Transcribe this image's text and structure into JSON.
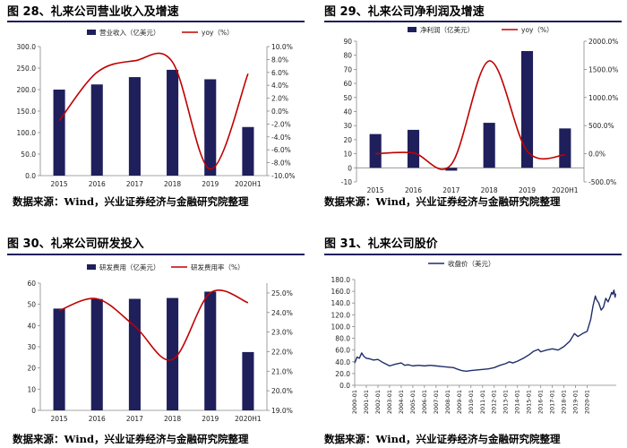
{
  "panels": [
    {
      "title": "图 28、礼来公司营业收入及增速",
      "source": "数据来源：Wind，兴业证券经济与金融研究院整理"
    },
    {
      "title": "图 29、礼来公司净利润及增速",
      "source": "数据来源：Wind，兴业证券经济与金融研究院整理"
    },
    {
      "title": "图 30、礼来公司研发投入",
      "source": "数据来源：Wind，兴业证券经济与金融研究院整理"
    },
    {
      "title": "图 31、礼来公司股价",
      "source": "数据来源：Wind，兴业证券经济与金融研究院整理"
    }
  ],
  "colors": {
    "bar": "#1f1f5c",
    "line": "#c00000",
    "price": "#1f2d6b",
    "rule": "#1f1f5c"
  },
  "chart_data": [
    {
      "type": "bar",
      "categories": [
        "2015",
        "2016",
        "2017",
        "2018",
        "2019",
        "2020H1"
      ],
      "series": [
        {
          "name": "营业收入（亿美元）",
          "type": "bar",
          "values": [
            200,
            212,
            229,
            246,
            224,
            113
          ]
        },
        {
          "name": "yoy（%）",
          "type": "line",
          "axis": "right",
          "values": [
            -1.5,
            6.0,
            7.8,
            7.6,
            -9.0,
            5.8
          ]
        }
      ],
      "ylim": [
        0,
        300
      ],
      "yticks": [
        "0.0",
        "50.0",
        "100.0",
        "150.0",
        "200.0",
        "250.0",
        "300.0"
      ],
      "y2lim": [
        -10,
        10
      ],
      "y2ticks": [
        "-10.0%",
        "-8.0%",
        "-6.0%",
        "-4.0%",
        "-2.0%",
        "0.0%",
        "2.0%",
        "4.0%",
        "6.0%",
        "8.0%",
        "10.0%"
      ],
      "legend": "top",
      "grid": false
    },
    {
      "type": "bar",
      "categories": [
        "2015",
        "2016",
        "2017",
        "2018",
        "2019",
        "2020H1"
      ],
      "series": [
        {
          "name": "净利润（亿美元）",
          "type": "bar",
          "values": [
            24,
            27,
            -2,
            32,
            83,
            28
          ]
        },
        {
          "name": "yoy（%）",
          "type": "line",
          "axis": "right",
          "values": [
            0,
            15,
            -190,
            1650,
            50,
            -20
          ]
        }
      ],
      "ylim": [
        -10,
        90
      ],
      "yticks": [
        "-10",
        "0",
        "10",
        "20",
        "30",
        "40",
        "50",
        "60",
        "70",
        "80",
        "90"
      ],
      "y2lim": [
        -500,
        2000
      ],
      "y2ticks": [
        "-500.0%",
        "0.0%",
        "500.0%",
        "1000.0%",
        "1500.0%",
        "2000.0%"
      ],
      "legend": "top",
      "grid": false
    },
    {
      "type": "bar",
      "categories": [
        "2015",
        "2016",
        "2017",
        "2018",
        "2019",
        "2020H1"
      ],
      "series": [
        {
          "name": "研发费用（亿美元）",
          "type": "bar",
          "values": [
            48,
            52.5,
            52.6,
            53,
            56,
            27.5
          ]
        },
        {
          "name": "研发费用率（%）",
          "type": "line",
          "axis": "right",
          "values": [
            24.1,
            24.7,
            23.3,
            21.6,
            25.0,
            24.5
          ]
        }
      ],
      "ylim": [
        0,
        60
      ],
      "yticks": [
        "0",
        "10",
        "20",
        "30",
        "40",
        "50",
        "60"
      ],
      "y2lim": [
        19,
        25.5
      ],
      "y2ticks": [
        "19.0%",
        "20.0%",
        "21.0%",
        "22.0%",
        "23.0%",
        "24.0%",
        "25.0%"
      ],
      "legend": "top",
      "grid": false
    },
    {
      "type": "line",
      "series": [
        {
          "name": "收盘价（美元）",
          "values": [
            [
              2000.0,
              38
            ],
            [
              2000.2,
              48
            ],
            [
              2000.4,
              46
            ],
            [
              2000.6,
              55
            ],
            [
              2000.8,
              49
            ],
            [
              2001.0,
              46
            ],
            [
              2001.3,
              45
            ],
            [
              2001.6,
              43
            ],
            [
              2002.0,
              44
            ],
            [
              2002.4,
              39
            ],
            [
              2002.8,
              35
            ],
            [
              2003.0,
              33
            ],
            [
              2003.5,
              36
            ],
            [
              2004.0,
              38
            ],
            [
              2004.3,
              34
            ],
            [
              2004.6,
              35
            ],
            [
              2005.0,
              33
            ],
            [
              2005.5,
              34
            ],
            [
              2006.0,
              33
            ],
            [
              2006.5,
              34
            ],
            [
              2007.0,
              33
            ],
            [
              2007.5,
              32
            ],
            [
              2008.0,
              31
            ],
            [
              2008.5,
              30
            ],
            [
              2008.9,
              27
            ],
            [
              2009.2,
              25
            ],
            [
              2009.6,
              24
            ],
            [
              2010.0,
              25
            ],
            [
              2010.5,
              26
            ],
            [
              2011.0,
              27
            ],
            [
              2011.5,
              28
            ],
            [
              2012.0,
              30
            ],
            [
              2012.5,
              34
            ],
            [
              2013.0,
              37
            ],
            [
              2013.3,
              40
            ],
            [
              2013.6,
              38
            ],
            [
              2014.0,
              41
            ],
            [
              2014.5,
              46
            ],
            [
              2015.0,
              52
            ],
            [
              2015.4,
              58
            ],
            [
              2015.8,
              61
            ],
            [
              2016.0,
              57
            ],
            [
              2016.5,
              60
            ],
            [
              2017.0,
              62
            ],
            [
              2017.5,
              60
            ],
            [
              2018.0,
              66
            ],
            [
              2018.5,
              75
            ],
            [
              2018.9,
              88
            ],
            [
              2019.2,
              83
            ],
            [
              2019.6,
              88
            ],
            [
              2020.0,
              92
            ],
            [
              2020.3,
              112
            ],
            [
              2020.5,
              135
            ],
            [
              2020.7,
              152
            ],
            [
              2020.8,
              146
            ],
            [
              2021.0,
              140
            ],
            [
              2021.2,
              128
            ],
            [
              2021.4,
              133
            ],
            [
              2021.6,
              148
            ],
            [
              2021.8,
              142
            ],
            [
              2022.0,
              152
            ],
            [
              2022.1,
              158
            ],
            [
              2022.2,
              155
            ],
            [
              2022.3,
              162
            ],
            [
              2022.4,
              150
            ],
            [
              2022.45,
              156
            ]
          ]
        }
      ],
      "ylim": [
        0,
        180
      ],
      "yticks": [
        "0.0",
        "20.0",
        "40.0",
        "60.0",
        "80.0",
        "100.0",
        "120.0",
        "140.0",
        "160.0",
        "180.0"
      ],
      "xticks": [
        "2000-01",
        "2001-01",
        "2002-01",
        "2003-01",
        "2004-01",
        "2005-01",
        "2006-01",
        "2007-01",
        "2008-01",
        "2009-01",
        "2010-01",
        "2011-01",
        "2012-01",
        "2013-01",
        "2014-01",
        "2015-01",
        "2016-01",
        "2017-01",
        "2018-01",
        "2019-01",
        "2020-01"
      ],
      "legend": "top",
      "grid": false
    }
  ]
}
